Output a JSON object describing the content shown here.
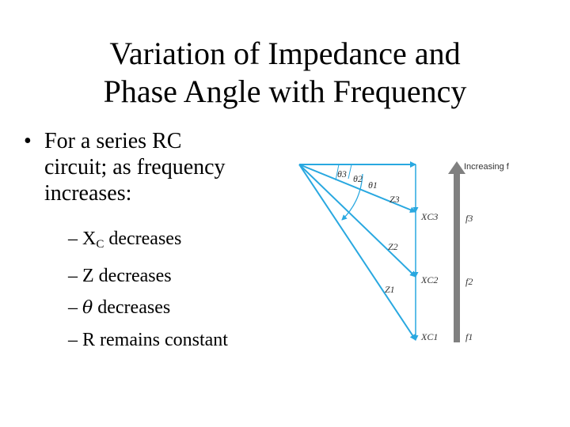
{
  "title": {
    "line1": "Variation of Impedance and",
    "line2": "Phase Angle with Frequency"
  },
  "bullet": {
    "marker": "•",
    "line1": "For a series RC",
    "line2": "circuit; as frequency",
    "line3": "increases:"
  },
  "subpoints": [
    {
      "dash": "–",
      "main": "X",
      "sub": "C",
      "rest": " decreases"
    },
    {
      "dash": "–",
      "text": "Z decreases"
    },
    {
      "dash": "–",
      "symbol": "θ",
      "rest": " decreases"
    },
    {
      "dash": "–",
      "text": "R remains constant"
    }
  ],
  "diagram": {
    "increasing_label": "Increasing f",
    "theta_labels": [
      "θ3",
      "θ2",
      "θ1"
    ],
    "z_labels": [
      "Z3",
      "Z2",
      "Z1"
    ],
    "xc_labels": [
      "XC3",
      "XC2",
      "XC1"
    ],
    "f_labels": [
      "f3",
      "f2",
      "f1"
    ],
    "colors": {
      "vectors": "#29a8e0",
      "arrow": "#808080",
      "text": "#333333"
    }
  }
}
